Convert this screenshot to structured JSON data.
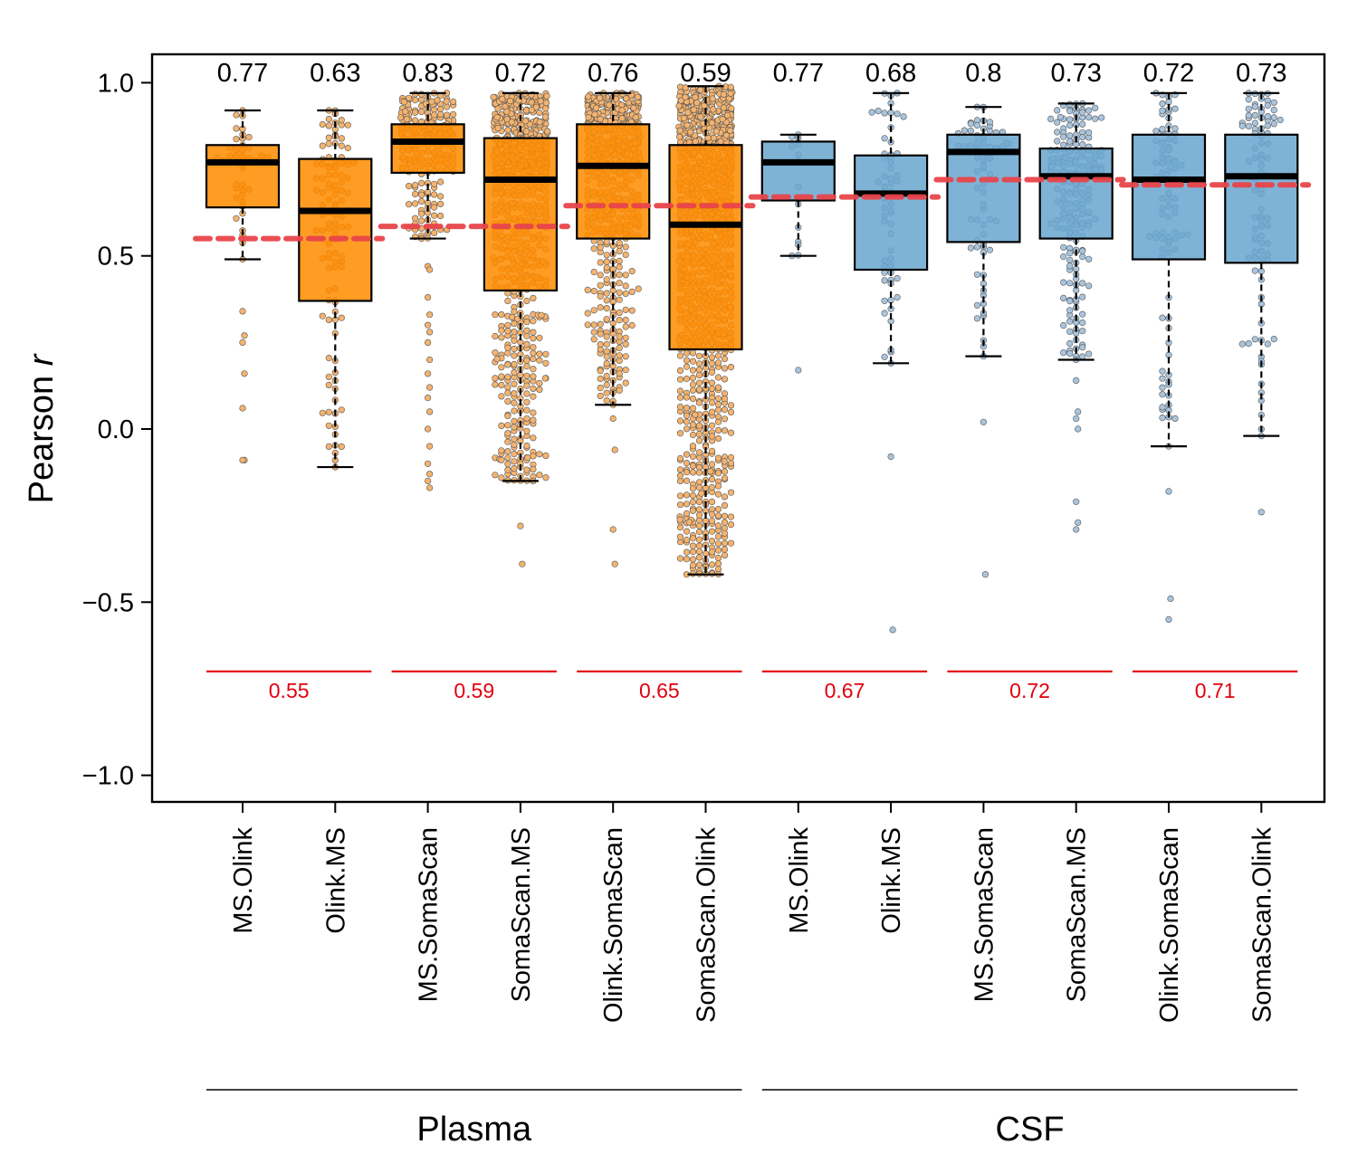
{
  "chart_data": {
    "type": "boxplot",
    "ylabel_prefix": "Pearson ",
    "ylabel_italic": "r",
    "ylim": [
      -1.1,
      1.08
    ],
    "yticks": [
      1.0,
      0.5,
      0.0,
      -0.5,
      -1.0
    ],
    "ytick_labels": [
      "1.0",
      "0.5",
      "0.0",
      "−0.5",
      "−1.0"
    ],
    "colors": {
      "Plasma": "#ff8c00",
      "CSF": "#6aa6cf",
      "plasma_point": "#f4b36f",
      "csf_point": "#a9c5de",
      "pair_mean": "#e0000d",
      "dashed_mean": "#e8454a"
    },
    "categories": [
      "MS.Olink",
      "Olink.MS",
      "MS.SomaScan",
      "SomaScan.MS",
      "Olink.SomaScan",
      "SomaScan.Olink",
      "MS.Olink",
      "Olink.MS",
      "MS.SomaScan",
      "SomaScan.MS",
      "Olink.SomaScan",
      "SomaScan.Olink"
    ],
    "groups": [
      {
        "name": "Plasma",
        "label": "Plasma",
        "indices": [
          0,
          1,
          2,
          3,
          4,
          5
        ]
      },
      {
        "name": "CSF",
        "label": "CSF",
        "indices": [
          6,
          7,
          8,
          9,
          10,
          11
        ]
      }
    ],
    "median_labels": [
      "0.77",
      "0.63",
      "0.83",
      "0.72",
      "0.76",
      "0.59",
      "0.77",
      "0.68",
      "0.8",
      "0.73",
      "0.72",
      "0.73"
    ],
    "boxes": [
      {
        "tissue": "Plasma",
        "median": 0.77,
        "q1": 0.64,
        "q3": 0.82,
        "whisker_low": 0.49,
        "whisker_high": 0.92,
        "n_points": 40,
        "outliers": [
          0.34,
          0.27,
          0.25,
          0.16,
          0.06,
          -0.09,
          -0.09
        ]
      },
      {
        "tissue": "Plasma",
        "median": 0.63,
        "q1": 0.37,
        "q3": 0.78,
        "whisker_low": -0.11,
        "whisker_high": 0.92,
        "n_points": 110,
        "outliers": []
      },
      {
        "tissue": "Plasma",
        "median": 0.83,
        "q1": 0.74,
        "q3": 0.88,
        "whisker_low": 0.55,
        "whisker_high": 0.97,
        "n_points": 220,
        "outliers": [
          0.47,
          0.46,
          0.38,
          0.33,
          0.3,
          0.28,
          0.25,
          0.2,
          0.16,
          0.12,
          0.09,
          0.05,
          0.0,
          -0.05,
          -0.1,
          -0.13,
          -0.15,
          -0.17
        ]
      },
      {
        "tissue": "Plasma",
        "median": 0.72,
        "q1": 0.4,
        "q3": 0.84,
        "whisker_low": -0.15,
        "whisker_high": 0.97,
        "n_points": 700,
        "outliers": [
          -0.28,
          -0.39
        ]
      },
      {
        "tissue": "Plasma",
        "median": 0.76,
        "q1": 0.55,
        "q3": 0.88,
        "whisker_low": 0.07,
        "whisker_high": 0.97,
        "n_points": 520,
        "outliers": [
          0.03,
          -0.06,
          -0.29,
          -0.39
        ]
      },
      {
        "tissue": "Plasma",
        "median": 0.59,
        "q1": 0.23,
        "q3": 0.82,
        "whisker_low": -0.42,
        "whisker_high": 0.99,
        "n_points": 1000,
        "outliers": []
      },
      {
        "tissue": "CSF",
        "median": 0.77,
        "q1": 0.66,
        "q3": 0.83,
        "whisker_low": 0.5,
        "whisker_high": 0.85,
        "n_points": 12,
        "outliers": [
          0.17
        ]
      },
      {
        "tissue": "CSF",
        "median": 0.68,
        "q1": 0.46,
        "q3": 0.79,
        "whisker_low": 0.19,
        "whisker_high": 0.97,
        "n_points": 60,
        "outliers": [
          -0.08,
          -0.58
        ]
      },
      {
        "tissue": "CSF",
        "median": 0.8,
        "q1": 0.54,
        "q3": 0.85,
        "whisker_low": 0.21,
        "whisker_high": 0.93,
        "n_points": 70,
        "outliers": [
          0.02,
          -0.42
        ]
      },
      {
        "tissue": "CSF",
        "median": 0.73,
        "q1": 0.55,
        "q3": 0.81,
        "whisker_low": 0.2,
        "whisker_high": 0.94,
        "n_points": 200,
        "outliers": [
          0.14,
          0.05,
          0.03,
          0.0,
          -0.21,
          -0.27,
          -0.29
        ]
      },
      {
        "tissue": "CSF",
        "median": 0.72,
        "q1": 0.49,
        "q3": 0.85,
        "whisker_low": -0.05,
        "whisker_high": 0.97,
        "n_points": 90,
        "outliers": [
          -0.18,
          -0.49,
          -0.55
        ]
      },
      {
        "tissue": "CSF",
        "median": 0.73,
        "q1": 0.48,
        "q3": 0.85,
        "whisker_low": -0.02,
        "whisker_high": 0.97,
        "n_points": 90,
        "outliers": [
          -0.24
        ]
      }
    ],
    "pair_means": [
      {
        "label": "0.55",
        "value": 0.55,
        "box_indices": [
          0,
          1
        ]
      },
      {
        "label": "0.59",
        "value": 0.585,
        "box_indices": [
          2,
          3
        ]
      },
      {
        "label": "0.65",
        "value": 0.645,
        "box_indices": [
          4,
          5
        ]
      },
      {
        "label": "0.67",
        "value": 0.67,
        "box_indices": [
          6,
          7
        ]
      },
      {
        "label": "0.72",
        "value": 0.72,
        "box_indices": [
          8,
          9
        ]
      },
      {
        "label": "0.71",
        "value": 0.705,
        "box_indices": [
          10,
          11
        ]
      }
    ],
    "pair_mean_label_y": -0.7
  }
}
